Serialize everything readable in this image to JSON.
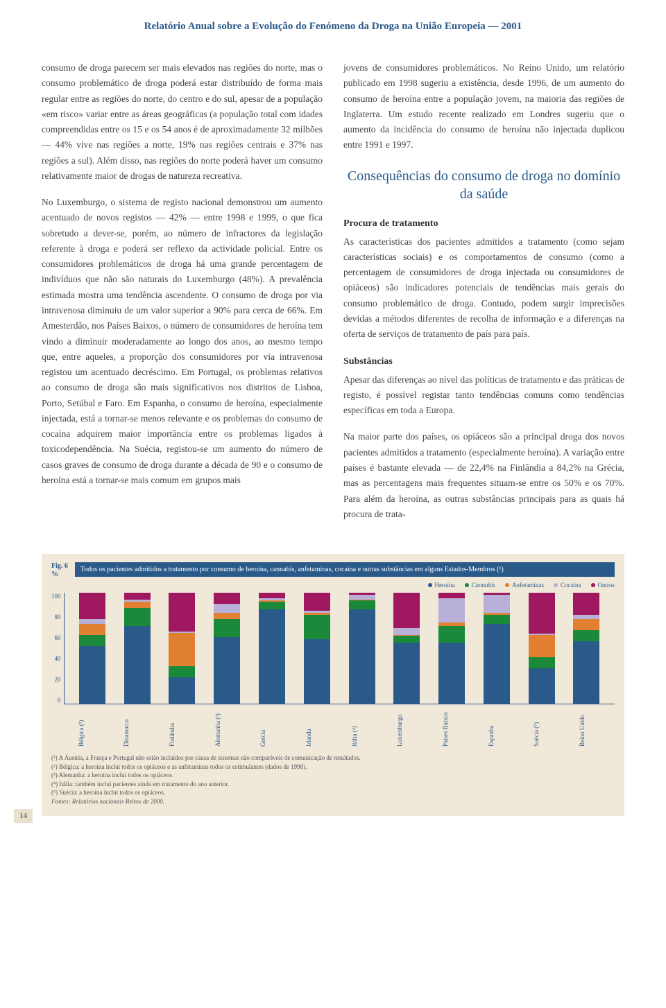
{
  "header": "Relatório Anual sobre a Evolução do Fenómeno da Droga na União Europeia — 2001",
  "left_col": {
    "p1": "consumo de droga parecem ser mais elevados nas regiões do norte, mas o consumo problemático de droga poderá estar distribuído de forma mais regular entre as regiões do norte, do centro e do sul, apesar de a população «em risco» variar entre as áreas geográficas (a população total com idades compreendidas entre os 15 e os 54 anos é de aproximadamente 32 milhões — 44% vive nas regiões a norte, 19% nas regiões centrais e 37% nas regiões a sul). Além disso, nas regiões do norte poderá haver um consumo relativamente maior de drogas de natureza recreativa.",
    "p2": "No Luxemburgo, o sistema de registo nacional demonstrou um aumento acentuado de novos registos — 42% — entre 1998 e 1999, o que fica sobretudo a dever-se, porém, ao número de infractores da legislação referente à droga e poderá ser reflexo da actividade policial. Entre os consumidores problemáticos de droga há uma grande percentagem de indivíduos que não são naturais do Luxemburgo (48%). A prevalência estimada mostra uma tendência ascendente. O consumo de droga por via intravenosa diminuiu de um valor superior a 90% para cerca de 66%. Em Amesterdão, nos Países Baixos, o número de consumidores de heroína tem vindo a diminuir moderadamente ao longo dos anos, ao mesmo tempo que, entre aqueles, a proporção dos consumidores por via intravenosa registou um acentuado decréscimo. Em Portugal, os problemas relativos ao consumo de droga são mais significativos nos distritos de Lisboa, Porto, Setúbal e Faro. Em Espanha, o consumo de heroína, especialmente injectada, está a tornar-se menos relevante e os problemas do consumo de cocaína adquirem maior importância entre os problemas ligados à toxicodependência. Na Suécia, registou-se um aumento do número de casos graves de consumo de droga durante a década de 90 e o consumo de heroína está a tornar-se mais comum em grupos mais"
  },
  "right_col": {
    "p1": "jovens de consumidores problemáticos. No Reino Unido, um relatório publicado em 1998 sugeriu a existência, desde 1996, de um aumento do consumo de heroína entre a população jovem, na maioria das regiões de Inglaterra. Um estudo recente realizado em Londres sugeriu que o aumento da incidência do consumo de heroína não injectada duplicou entre 1991 e 1997.",
    "section_title": "Consequências do consumo de droga no domínio da saúde",
    "sub1_title": "Procura de tratamento",
    "sub1_p": "As características dos pacientes admitidos a tratamento (como sejam características sociais) e os comportamentos de consumo (como a percentagem de consumidores de droga injectada ou consumidores de opiáceos) são indicadores potenciais de tendências mais gerais do consumo problemático de droga. Contudo, podem surgir imprecisões devidas a métodos diferentes de recolha de informação e a diferenças na oferta de serviços de tratamento de país para país.",
    "sub2_title": "Substâncias",
    "sub2_p1": "Apesar das diferenças ao nível das políticas de tratamento e das práticas de registo, é possível registar tanto tendências comuns como tendências específicas em toda a Europa.",
    "sub2_p2": "Na maior parte dos países, os opiáceos são a principal droga dos novos pacientes admitidos a tratamento (especialmente heroína). A variação entre países é bastante elevada — de 22,4% na Finlândia a 84,2% na Grécia, mas as percentagens mais frequentes situam-se entre os 50% e os 70%. Para além da heroína, as outras substâncias principais para as quais há procura de trata-"
  },
  "chart": {
    "fig_label": "Fig. 6",
    "pct_label": "%",
    "title": "Todos os pacientes admitidos a tratamento por consumo de heroína, cannabis, anfetaminas, cocaína e outras substâncias em alguns Estados-Membros (¹)",
    "legend": [
      {
        "label": "Heroína",
        "color": "#2a5a8a"
      },
      {
        "label": "Cannabis",
        "color": "#1a8a3a",
        "style": "italic"
      },
      {
        "label": "Anfetaminas",
        "color": "#e08030"
      },
      {
        "label": "Cocaína",
        "color": "#b8b0d8"
      },
      {
        "label": "Outros",
        "color": "#a01860"
      }
    ],
    "ylim": [
      0,
      100
    ],
    "ytick_step": 20,
    "yticks": [
      "100",
      "80",
      "60",
      "40",
      "20",
      "0"
    ],
    "colors": {
      "heroin": "#2a5a8a",
      "cannabis": "#1a8a3a",
      "amphet": "#e08030",
      "cocaine": "#b8b0d8",
      "other": "#a01860"
    },
    "countries": [
      {
        "label": "Bélgica (²)",
        "heroin": 52,
        "cannabis": 10,
        "amphet": 10,
        "cocaine": 4,
        "other": 24
      },
      {
        "label": "Dinamarca",
        "heroin": 70,
        "cannabis": 16,
        "amphet": 6,
        "cocaine": 2,
        "other": 6
      },
      {
        "label": "Finlândia",
        "heroin": 24,
        "cannabis": 10,
        "amphet": 30,
        "cocaine": 1,
        "other": 35
      },
      {
        "label": "Alemanha (³)",
        "heroin": 60,
        "cannabis": 16,
        "amphet": 6,
        "cocaine": 8,
        "other": 10
      },
      {
        "label": "Grécia",
        "heroin": 85,
        "cannabis": 7,
        "amphet": 1,
        "cocaine": 2,
        "other": 5
      },
      {
        "label": "Irlanda",
        "heroin": 58,
        "cannabis": 22,
        "amphet": 2,
        "cocaine": 2,
        "other": 16
      },
      {
        "label": "Itália (⁴)",
        "heroin": 85,
        "cannabis": 8,
        "amphet": 1,
        "cocaine": 4,
        "other": 2
      },
      {
        "label": "Luxemburgo",
        "heroin": 55,
        "cannabis": 6,
        "amphet": 1,
        "cocaine": 6,
        "other": 32
      },
      {
        "label": "Países Baixos",
        "heroin": 55,
        "cannabis": 15,
        "amphet": 3,
        "cocaine": 22,
        "other": 5
      },
      {
        "label": "Espanha",
        "heroin": 72,
        "cannabis": 8,
        "amphet": 2,
        "cocaine": 16,
        "other": 2
      },
      {
        "label": "Suécia (⁵)",
        "heroin": 32,
        "cannabis": 10,
        "amphet": 20,
        "cocaine": 1,
        "other": 37
      },
      {
        "label": "Reino Unido",
        "heroin": 56,
        "cannabis": 10,
        "amphet": 10,
        "cocaine": 4,
        "other": 20
      }
    ],
    "footnotes": [
      "(¹) A Áustria, a França e Portugal não estão incluídos por causa de sistemas não comparáveis de comunicação de resultados.",
      "(²) Bélgica: a heroína inclui todos os opiáceos e as anfetaminas todos os estimulantes (dados de 1998).",
      "(³) Alemanha: a heroína inclui todos os opiáceos.",
      "(⁴) Itália: também inclui pacientes ainda em tratamento do ano anterior.",
      "(⁵) Suécia: a heroína inclui todos os opiáceos.",
      "Fontes: Relatórios nacionais Reitox de 2000."
    ]
  },
  "page_num": "14"
}
